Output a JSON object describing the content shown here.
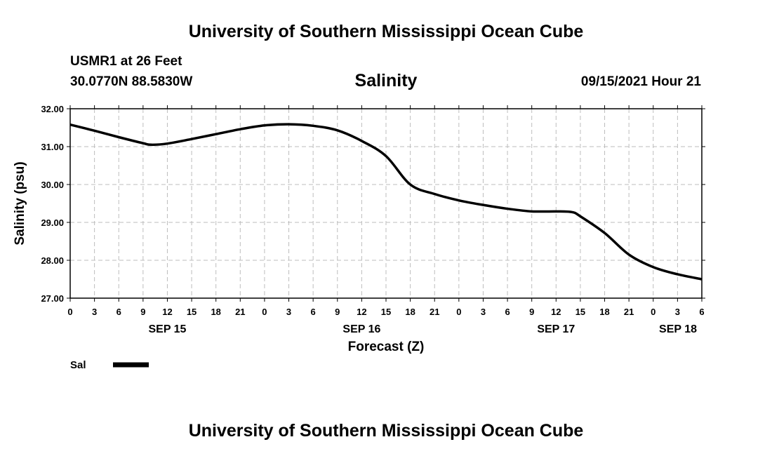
{
  "header": {
    "title": "University of Southern Mississippi Ocean Cube",
    "station": "USMR1 at 26 Feet",
    "coords": "30.0770N  88.5830W",
    "datetime": "09/15/2021 Hour 21"
  },
  "footer": {
    "title": "University of Southern Mississippi Ocean Cube"
  },
  "legend": {
    "label": "Sal"
  },
  "colors": {
    "line": "#000000",
    "grid": "#bdbdbd"
  },
  "chart_data": {
    "type": "line",
    "title": "Salinity",
    "xlabel": "Forecast (Z)",
    "ylabel": "Salinity (psu)",
    "xlim": [
      0,
      78
    ],
    "ylim": [
      27.0,
      32.0
    ],
    "grid": true,
    "legend_position": "bottom-left",
    "yticks": [
      "27.00",
      "28.00",
      "29.00",
      "30.00",
      "31.00",
      "32.00"
    ],
    "xticks": [
      "0",
      "3",
      "6",
      "9",
      "12",
      "15",
      "18",
      "21",
      "0",
      "3",
      "6",
      "9",
      "12",
      "15",
      "18",
      "21",
      "0",
      "3",
      "6",
      "9",
      "12",
      "15",
      "18",
      "21",
      "0",
      "3",
      "6"
    ],
    "day_labels": [
      {
        "label": "SEP 15",
        "hour": 12
      },
      {
        "label": "SEP 16",
        "hour": 36
      },
      {
        "label": "SEP 17",
        "hour": 60
      },
      {
        "label": "SEP 18",
        "hour": 78
      }
    ],
    "series": [
      {
        "name": "Sal",
        "x": [
          0,
          3,
          6,
          9,
          10,
          12,
          15,
          18,
          21,
          24,
          27,
          30,
          33,
          36,
          39,
          42,
          45,
          48,
          51,
          54,
          57,
          60,
          62,
          63,
          66,
          69,
          72,
          75,
          78
        ],
        "y": [
          31.58,
          31.42,
          31.25,
          31.09,
          31.05,
          31.08,
          31.2,
          31.33,
          31.46,
          31.56,
          31.59,
          31.55,
          31.43,
          31.15,
          30.75,
          30.0,
          29.75,
          29.58,
          29.46,
          29.36,
          29.29,
          29.29,
          29.27,
          29.16,
          28.72,
          28.15,
          27.82,
          27.63,
          27.5
        ]
      }
    ]
  }
}
